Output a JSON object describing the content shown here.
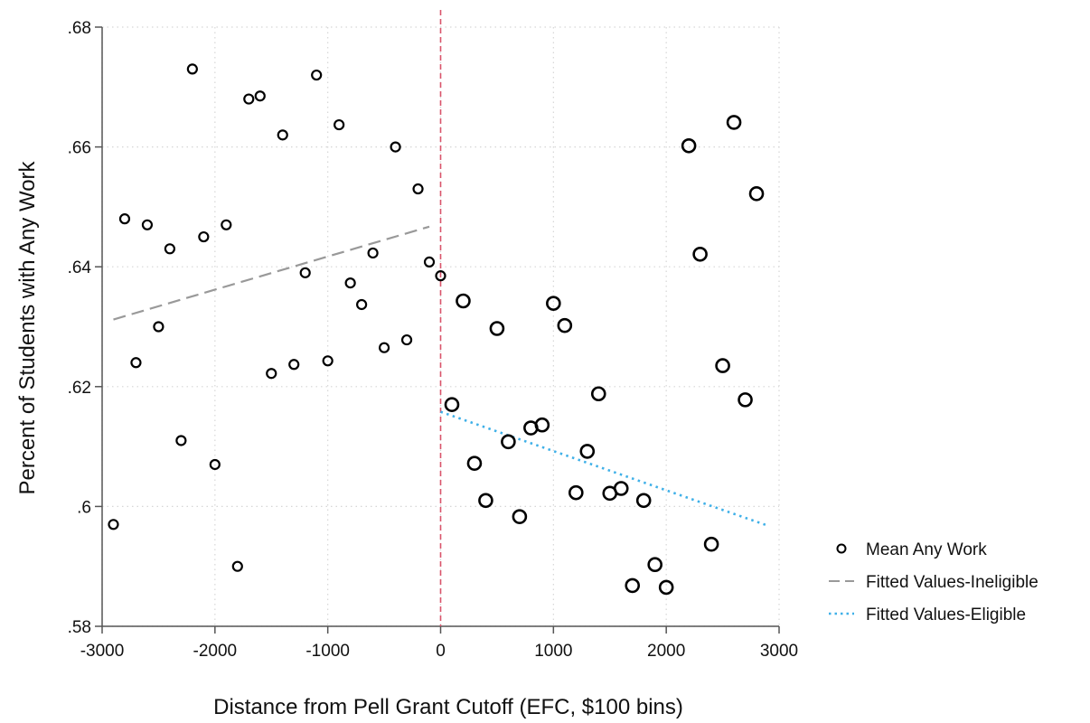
{
  "chart_data": {
    "type": "scatter",
    "title": "",
    "xlabel": "Distance from Pell Grant Cutoff (EFC, $100 bins)",
    "ylabel": "Percent of Students with Any Work",
    "xlim": [
      -3000,
      3000
    ],
    "ylim": [
      0.58,
      0.68
    ],
    "x_ticks": [
      -3000,
      -2000,
      -1000,
      0,
      1000,
      2000,
      3000
    ],
    "x_tick_labels": [
      "-3000",
      "-2000",
      "-1000",
      "0",
      "1000",
      "2000",
      "3000"
    ],
    "y_ticks": [
      0.58,
      0.6,
      0.62,
      0.64,
      0.66,
      0.68
    ],
    "y_tick_labels": [
      ".58",
      ".6",
      ".62",
      ".64",
      ".66",
      ".68"
    ],
    "grid": true,
    "cutoff_line": {
      "x": 0,
      "color": "#d9546b"
    },
    "legend": {
      "position": "right",
      "entries": [
        {
          "label": "Mean Any Work",
          "marker": "hollow-circle",
          "color": "#000000"
        },
        {
          "label": "Fitted Values-Ineligible",
          "style": "dashed",
          "color": "#999999"
        },
        {
          "label": "Fitted Values-Eligible",
          "style": "dotted",
          "color": "#3fb0e8"
        }
      ]
    },
    "series": [
      {
        "name": "Mean Any Work",
        "group": "ineligible",
        "x": [
          -2900,
          -2800,
          -2700,
          -2600,
          -2500,
          -2400,
          -2300,
          -2200,
          -2100,
          -2000,
          -1900,
          -1800,
          -1700,
          -1600,
          -1500,
          -1400,
          -1300,
          -1200,
          -1100,
          -1000,
          -900,
          -800,
          -700,
          -600,
          -500,
          -400,
          -300,
          -200,
          -100,
          0
        ],
        "y": [
          0.597,
          0.648,
          0.624,
          0.647,
          0.63,
          0.643,
          0.611,
          0.673,
          0.645,
          0.607,
          0.647,
          0.59,
          0.668,
          0.6685,
          0.6222,
          0.662,
          0.6237,
          0.639,
          0.672,
          0.6243,
          0.6637,
          0.6373,
          0.6337,
          0.6423,
          0.6265,
          0.66,
          0.6278,
          0.653,
          0.6408,
          0.6385
        ]
      },
      {
        "name": "Mean Any Work",
        "group": "eligible",
        "x": [
          100,
          200,
          300,
          400,
          500,
          600,
          700,
          800,
          900,
          1000,
          1100,
          1200,
          1300,
          1400,
          1500,
          1600,
          1700,
          1800,
          1900,
          2000,
          2200,
          2300,
          2400,
          2500,
          2600,
          2700,
          2800
        ],
        "y": [
          0.617,
          0.6343,
          0.6072,
          0.601,
          0.6297,
          0.6108,
          0.5983,
          0.6131,
          0.6136,
          0.6339,
          0.6302,
          0.6023,
          0.6092,
          0.6188,
          0.6022,
          0.603,
          0.5868,
          0.601,
          0.5903,
          0.5865,
          0.6602,
          0.6421,
          0.5937,
          0.6235,
          0.6641,
          0.6178,
          0.6522
        ]
      }
    ],
    "fitted_lines": [
      {
        "name": "Fitted Values-Ineligible",
        "x": [
          -2900,
          -100
        ],
        "y": [
          0.6312,
          0.6467
        ]
      },
      {
        "name": "Fitted Values-Eligible",
        "x": [
          0,
          2900
        ],
        "y": [
          0.6158,
          0.5968
        ]
      }
    ]
  }
}
